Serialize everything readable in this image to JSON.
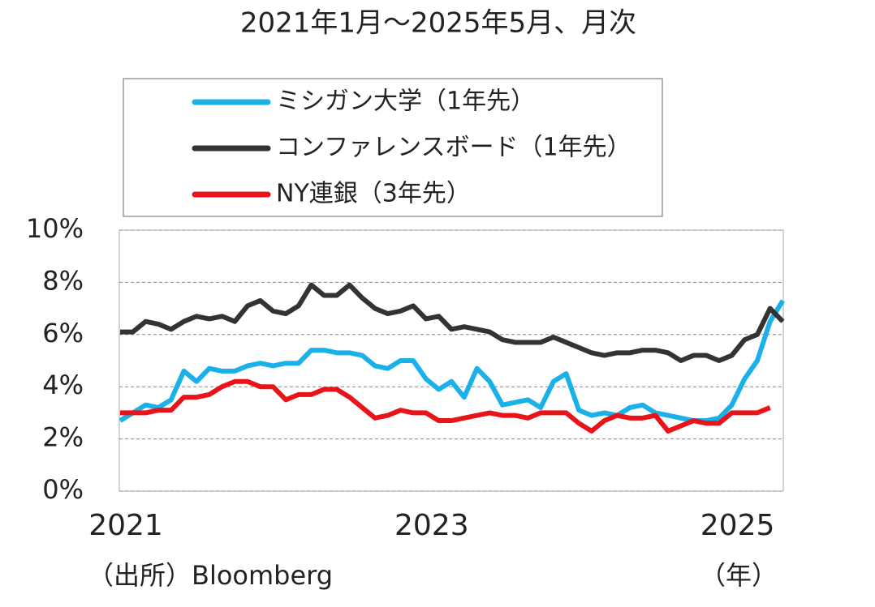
{
  "chart_data": {
    "type": "line",
    "title": "2021年1月～2025年5月、月次",
    "source": "（出所）Bloomberg",
    "x_unit": "（年）",
    "categories": [
      "2021",
      null,
      null,
      null,
      null,
      null,
      null,
      null,
      null,
      null,
      null,
      null,
      null,
      null,
      null,
      null,
      null,
      null,
      null,
      null,
      null,
      null,
      null,
      null,
      "2023",
      null,
      null,
      null,
      null,
      null,
      null,
      null,
      null,
      null,
      null,
      null,
      null,
      null,
      null,
      null,
      null,
      null,
      null,
      null,
      null,
      null,
      null,
      null,
      "2025",
      null,
      null,
      null,
      null
    ],
    "series": [
      {
        "name": "ミシガン大学（1年先）",
        "color": "#1ab0e8",
        "values": [
          2.7,
          3.0,
          3.3,
          3.2,
          3.5,
          4.6,
          4.2,
          4.7,
          4.6,
          4.6,
          4.8,
          4.9,
          4.8,
          4.9,
          4.9,
          5.4,
          5.4,
          5.3,
          5.3,
          5.2,
          4.8,
          4.7,
          5.0,
          5.0,
          4.3,
          3.9,
          4.2,
          3.6,
          4.7,
          4.2,
          3.3,
          3.4,
          3.5,
          3.2,
          4.2,
          4.5,
          3.1,
          2.9,
          3.0,
          2.9,
          3.2,
          3.3,
          3.0,
          2.9,
          2.8,
          2.7,
          2.7,
          2.8,
          3.3,
          4.3,
          5.0,
          6.5,
          7.3
        ]
      },
      {
        "name": "コンファレンスボード（1年先）",
        "color": "#333333",
        "values": [
          6.1,
          6.1,
          6.5,
          6.4,
          6.2,
          6.5,
          6.7,
          6.6,
          6.7,
          6.5,
          7.1,
          7.3,
          6.9,
          6.8,
          7.1,
          7.9,
          7.5,
          7.5,
          7.9,
          7.4,
          7.0,
          6.8,
          6.9,
          7.1,
          6.6,
          6.7,
          6.2,
          6.3,
          6.2,
          6.1,
          5.8,
          5.7,
          5.7,
          5.7,
          5.9,
          5.7,
          5.5,
          5.3,
          5.2,
          5.3,
          5.3,
          5.4,
          5.4,
          5.3,
          5.0,
          5.2,
          5.2,
          5.0,
          5.2,
          5.8,
          6.0,
          7.0,
          6.5
        ]
      },
      {
        "name": "NY連銀（3年先）",
        "color": "#e8141a",
        "values": [
          3.0,
          3.0,
          3.0,
          3.1,
          3.1,
          3.6,
          3.6,
          3.7,
          4.0,
          4.2,
          4.2,
          4.0,
          4.0,
          3.5,
          3.7,
          3.7,
          3.9,
          3.9,
          3.6,
          3.2,
          2.8,
          2.9,
          3.1,
          3.0,
          3.0,
          2.7,
          2.7,
          2.8,
          2.9,
          3.0,
          2.9,
          2.9,
          2.8,
          3.0,
          3.0,
          3.0,
          2.6,
          2.3,
          2.7,
          2.9,
          2.8,
          2.8,
          2.9,
          2.3,
          2.5,
          2.7,
          2.6,
          2.6,
          3.0,
          3.0,
          3.0,
          3.2,
          null
        ]
      }
    ],
    "ylim": [
      0,
      10
    ],
    "yticks": [
      {
        "value": 0,
        "label": "0%"
      },
      {
        "value": 2,
        "label": "2%"
      },
      {
        "value": 4,
        "label": "4%"
      },
      {
        "value": 6,
        "label": "6%"
      },
      {
        "value": 8,
        "label": "8%"
      },
      {
        "value": 10,
        "label": "10%"
      }
    ],
    "grid": true
  }
}
